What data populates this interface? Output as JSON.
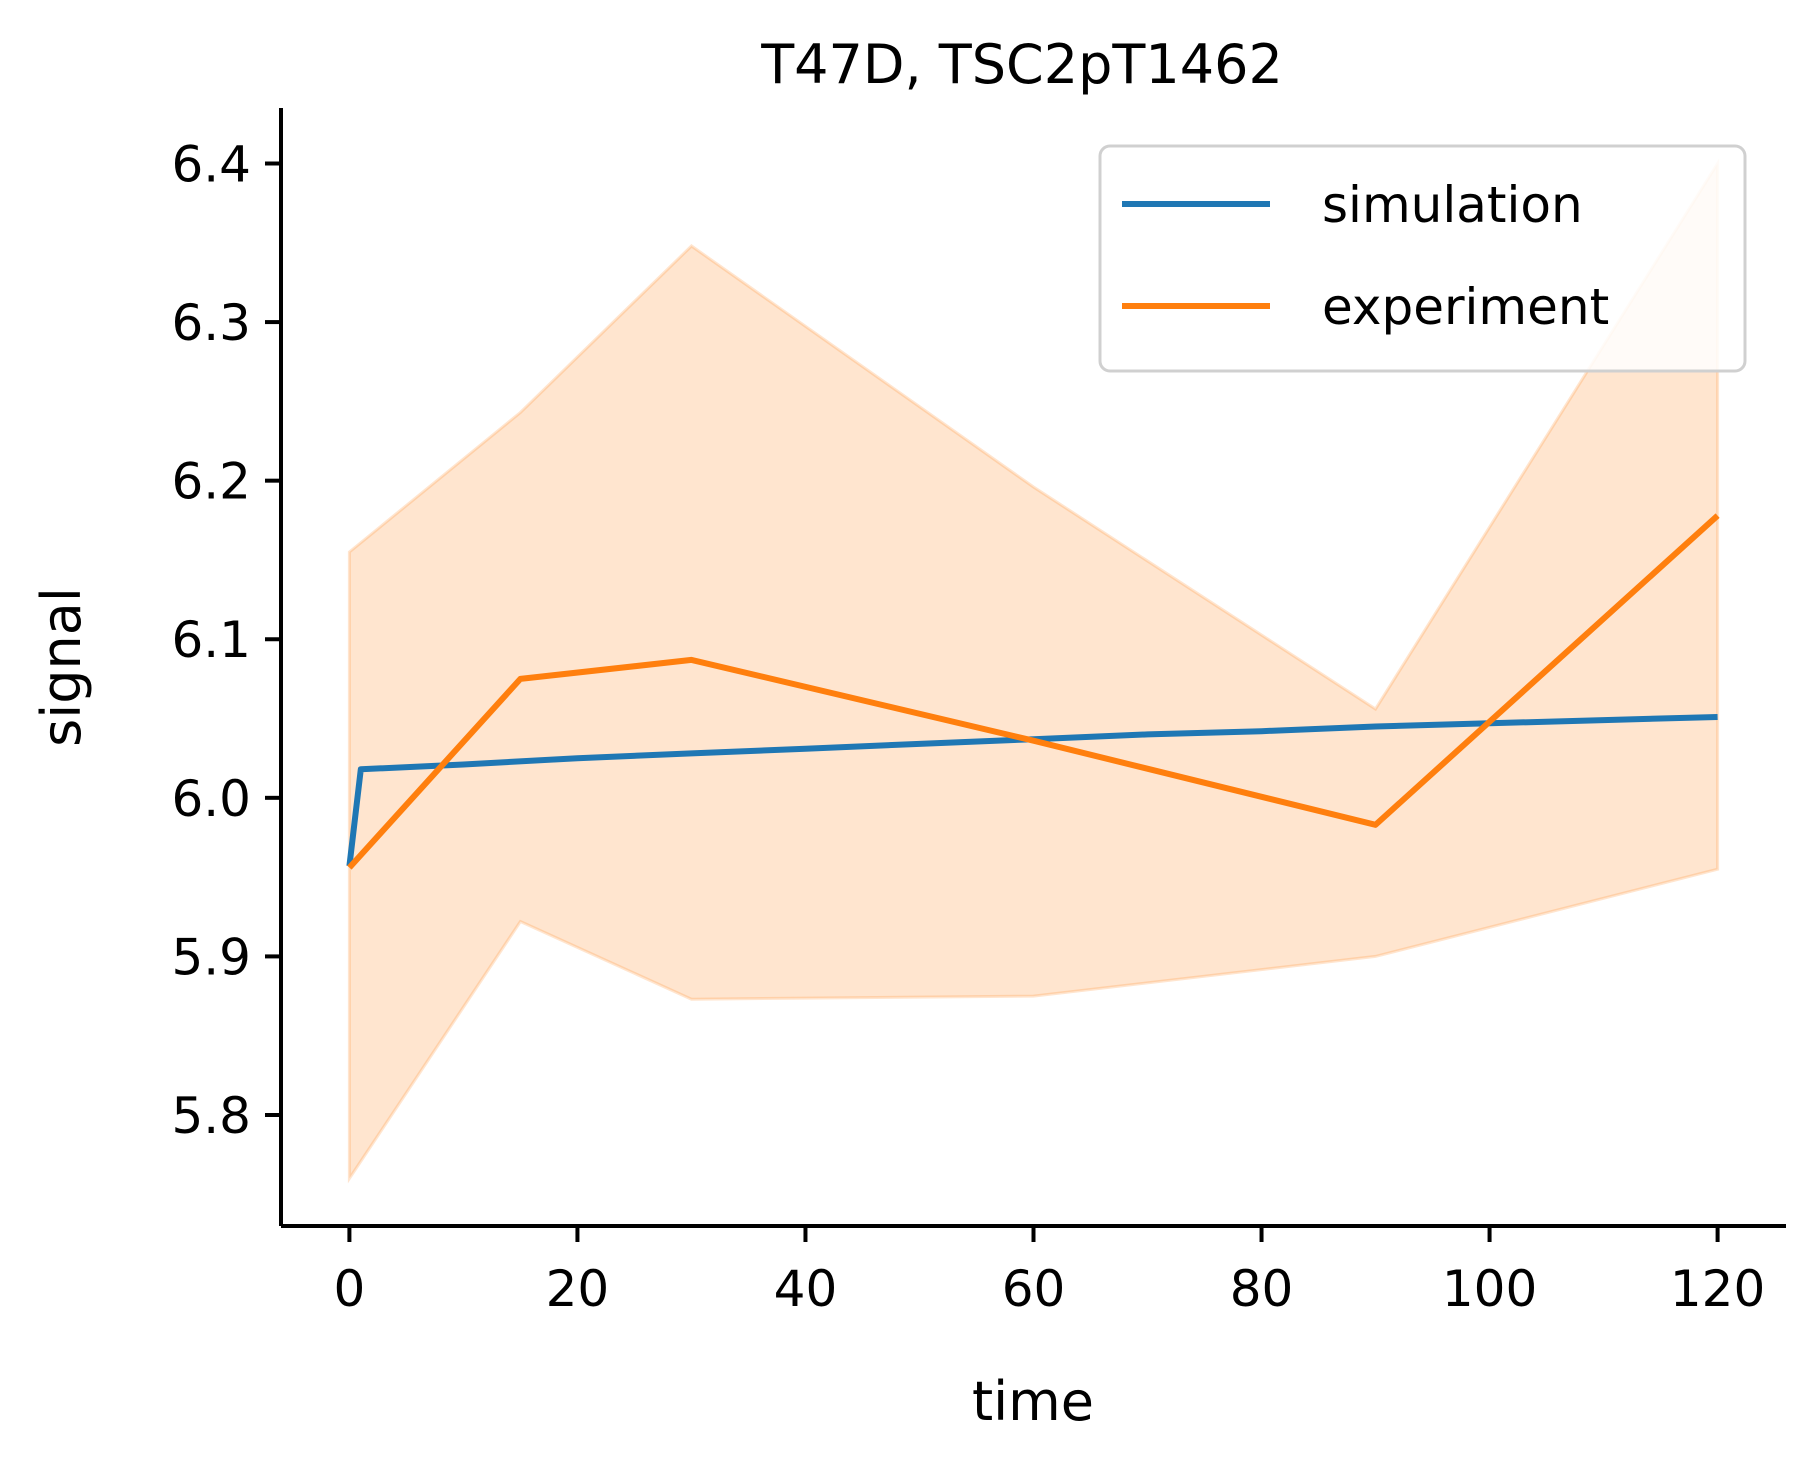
{
  "chart_data": {
    "type": "line",
    "title": "T47D, TSC2pT1462",
    "xlabel": "time",
    "ylabel": "signal",
    "xlim": [
      -6,
      126
    ],
    "ylim": [
      5.73,
      6.435
    ],
    "xticks": [
      0,
      20,
      40,
      60,
      80,
      100,
      120
    ],
    "yticks": [
      5.8,
      5.9,
      6.0,
      6.1,
      6.2,
      6.3,
      6.4
    ],
    "xtick_labels": [
      "0",
      "20",
      "40",
      "60",
      "80",
      "100",
      "120"
    ],
    "ytick_labels": [
      "5.8",
      "5.9",
      "6.0",
      "6.1",
      "6.2",
      "6.3",
      "6.4"
    ],
    "grid": false,
    "legend_position": "top-right",
    "series": [
      {
        "name": "simulation",
        "color": "#1f77b4",
        "x": [
          0,
          1,
          10,
          20,
          30,
          40,
          50,
          60,
          70,
          80,
          90,
          100,
          110,
          120
        ],
        "y": [
          5.957,
          6.018,
          6.021,
          6.025,
          6.028,
          6.031,
          6.034,
          6.037,
          6.04,
          6.042,
          6.045,
          6.047,
          6.049,
          6.051
        ]
      },
      {
        "name": "experiment",
        "color": "#ff7f0e",
        "x": [
          0,
          15,
          30,
          60,
          90,
          120
        ],
        "y": [
          5.956,
          6.075,
          6.087,
          6.036,
          5.983,
          6.178
        ],
        "band_upper": [
          6.155,
          6.243,
          6.348,
          6.196,
          6.056,
          6.4
        ],
        "band_lower": [
          5.76,
          5.922,
          5.873,
          5.875,
          5.9,
          5.955
        ],
        "band_color": "#ff7f0e"
      }
    ]
  }
}
